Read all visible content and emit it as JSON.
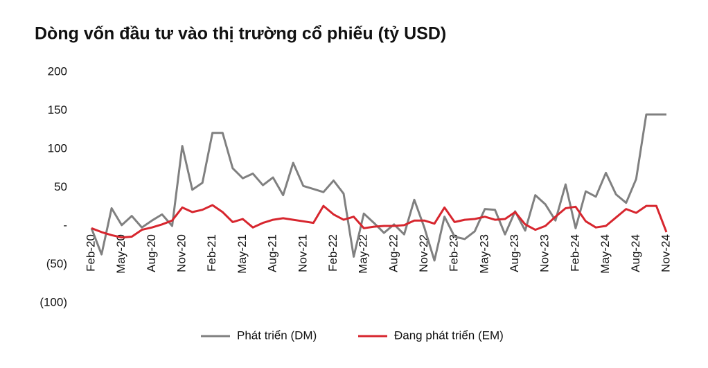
{
  "chart_data": {
    "type": "line",
    "title": "Dòng vốn đầu tư vào thị trường cổ phiếu (tỷ USD)",
    "categories": [
      "Feb-20",
      null,
      null,
      "May-20",
      null,
      null,
      "Aug-20",
      null,
      null,
      "Nov-20",
      null,
      null,
      "Feb-21",
      null,
      null,
      "May-21",
      null,
      null,
      "Aug-21",
      null,
      null,
      "Nov-21",
      null,
      null,
      "Feb-22",
      null,
      null,
      "May-22",
      null,
      null,
      "Aug-22",
      null,
      null,
      "Nov-22",
      null,
      null,
      "Feb-23",
      null,
      null,
      "May-23",
      null,
      null,
      "Aug-23",
      null,
      null,
      "Nov-23",
      null,
      null,
      "Feb-24",
      null,
      null,
      "May-24",
      null,
      null,
      "Aug-24",
      null,
      null,
      "Nov-24"
    ],
    "series": [
      {
        "name": "Phát triển (DM)",
        "color": "#808080",
        "values": [
          -3,
          -37,
          23,
          1,
          13,
          -2,
          7,
          15,
          0,
          104,
          47,
          56,
          121,
          121,
          75,
          62,
          68,
          53,
          63,
          40,
          82,
          52,
          48,
          44,
          59,
          42,
          -40,
          16,
          4,
          -9,
          2,
          -11,
          34,
          -2,
          -45,
          12,
          -14,
          -17,
          -7,
          22,
          21,
          -11,
          19,
          -6,
          40,
          28,
          7,
          54,
          -3,
          45,
          38,
          69,
          41,
          30,
          61,
          145,
          145,
          145
        ]
      },
      {
        "name": "Đang phát triển (EM)",
        "color": "#d7262e",
        "values": [
          -3,
          -8,
          -12,
          -15,
          -14,
          -5,
          -2,
          2,
          7,
          24,
          18,
          21,
          27,
          18,
          5,
          9,
          -2,
          4,
          8,
          10,
          8,
          6,
          4,
          26,
          15,
          8,
          12,
          -3,
          -1,
          0,
          0,
          1,
          7,
          7,
          3,
          24,
          5,
          8,
          9,
          12,
          8,
          9,
          18,
          2,
          -5,
          0,
          12,
          23,
          25,
          6,
          -2,
          0,
          11,
          22,
          17,
          26,
          26,
          -8
        ]
      }
    ],
    "ylim": [
      -100,
      200
    ],
    "yticks": [
      200,
      150,
      100,
      50,
      {
        "value": 0,
        "label": "-"
      },
      {
        "value": -50,
        "label": "(50)"
      },
      {
        "value": -100,
        "label": "(100)"
      }
    ]
  }
}
